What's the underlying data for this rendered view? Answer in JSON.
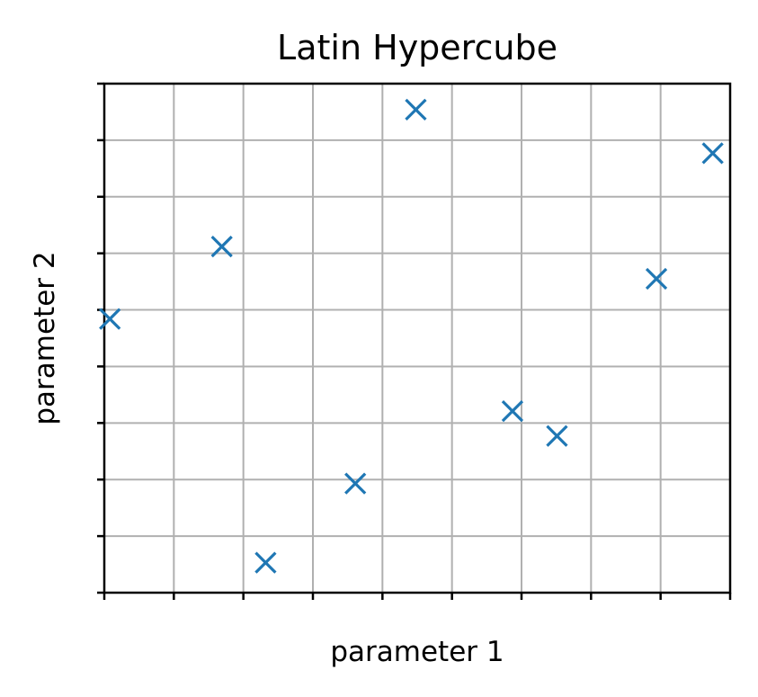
{
  "chart_data": {
    "type": "scatter",
    "title": "Latin Hypercube",
    "xlabel": "parameter 1",
    "ylabel": "parameter 2",
    "xlim": [
      0,
      9
    ],
    "ylim": [
      0,
      9
    ],
    "grid": true,
    "xticks": [
      0,
      1,
      2,
      3,
      4,
      5,
      6,
      7,
      8,
      9
    ],
    "yticks": [
      0,
      1,
      2,
      3,
      4,
      5,
      6,
      7,
      8,
      9
    ],
    "tick_labels_visible": false,
    "marker": "x",
    "color": "#1f77b4",
    "series": [
      {
        "x": [
          0.08,
          1.69,
          2.32,
          3.61,
          4.48,
          5.87,
          6.51,
          7.94,
          8.75
        ],
        "y": [
          4.84,
          6.12,
          0.53,
          1.93,
          8.54,
          3.21,
          2.77,
          5.55,
          7.77
        ]
      }
    ]
  }
}
